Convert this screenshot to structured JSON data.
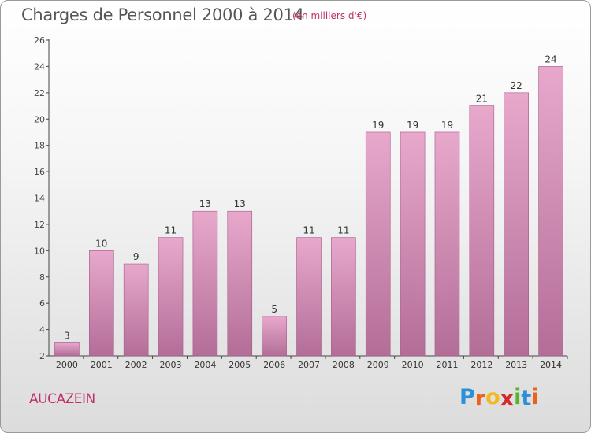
{
  "header": {
    "title": "Charges de Personnel 2000 à 2014",
    "subtitle": "(en milliers d'€)"
  },
  "footer": {
    "commune": "AUCAZEIN",
    "logo": [
      "P",
      "r",
      "o",
      "x",
      "i",
      "t",
      "i"
    ],
    "logo_colors": [
      "#2c8fd8",
      "#e8641e",
      "#f2b81c",
      "#d52a2a",
      "#52b62b",
      "#2c8fd8",
      "#e8641e"
    ]
  },
  "chart_data": {
    "type": "bar",
    "categories": [
      "2000",
      "2001",
      "2002",
      "2003",
      "2004",
      "2005",
      "2006",
      "2007",
      "2008",
      "2009",
      "2010",
      "2011",
      "2012",
      "2013",
      "2014"
    ],
    "values": [
      3,
      10,
      9,
      11,
      13,
      13,
      5,
      11,
      11,
      19,
      19,
      19,
      21,
      22,
      24
    ],
    "ylim": [
      2,
      26
    ],
    "yticks": [
      2,
      4,
      6,
      8,
      10,
      12,
      14,
      16,
      18,
      20,
      22,
      24,
      26
    ],
    "grid": false,
    "bar_color_top": "#e8a8cc",
    "bar_color_bottom": "#b36e98",
    "bar_edge": "#a45a88"
  }
}
